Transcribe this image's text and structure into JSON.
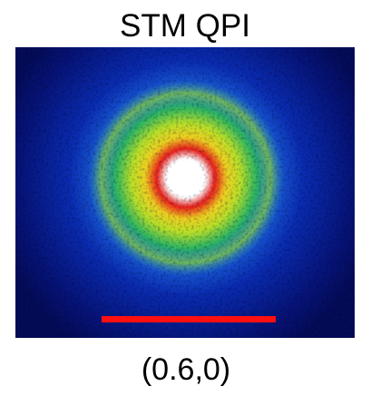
{
  "title": "STM QPI",
  "label": "(0.6,0)"
}
